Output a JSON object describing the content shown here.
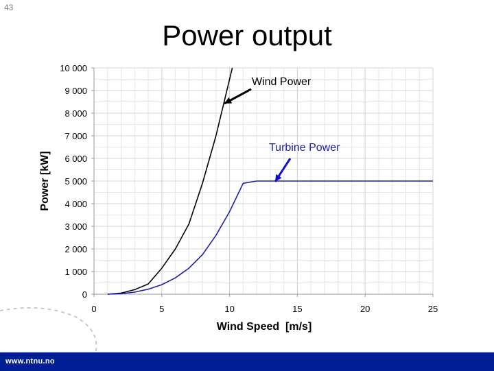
{
  "slide": {
    "number": "43",
    "title": "Power output"
  },
  "footer": {
    "url": "www.ntnu.no",
    "color": "#001e96"
  },
  "annotations": {
    "wind": {
      "label": "Wind Power",
      "color": "#000000"
    },
    "turbine": {
      "label": "Turbine Power",
      "color": "#1f1fa0"
    }
  },
  "chart_data": {
    "type": "line",
    "title": "Power output",
    "xlabel": "Wind Speed  [m/s]",
    "ylabel": "Power [kW]",
    "xlim": [
      0,
      25
    ],
    "ylim": [
      0,
      10000
    ],
    "xticks": [
      0,
      5,
      10,
      15,
      20,
      25
    ],
    "yticks": [
      0,
      1000,
      2000,
      3000,
      4000,
      5000,
      6000,
      7000,
      8000,
      9000,
      10000
    ],
    "ytick_labels": [
      "0",
      "1 000",
      "2 000",
      "3 000",
      "4 000",
      "5 000",
      "6 000",
      "7 000",
      "8 000",
      "9 000",
      "10 000"
    ],
    "grid": true,
    "legend": "inline annotations with arrows",
    "series": [
      {
        "name": "Wind Power",
        "color": "#000000",
        "x": [
          1,
          2,
          3,
          4,
          5,
          6,
          7,
          8,
          9,
          10,
          10.2
        ],
        "y": [
          0,
          50,
          200,
          450,
          1150,
          2000,
          3100,
          4900,
          7000,
          9500,
          10000
        ]
      },
      {
        "name": "Turbine Power",
        "color": "#1f1fa0",
        "x": [
          1,
          2,
          3,
          4,
          5,
          6,
          7,
          8,
          9,
          10,
          11,
          12,
          13,
          14,
          15,
          16,
          17,
          18,
          19,
          20,
          21,
          22,
          23,
          24,
          25
        ],
        "y": [
          0,
          20,
          90,
          220,
          420,
          720,
          1150,
          1750,
          2600,
          3650,
          4900,
          5000,
          5000,
          5000,
          5000,
          5000,
          5000,
          5000,
          5000,
          5000,
          5000,
          5000,
          5000,
          5000,
          5000
        ]
      }
    ]
  }
}
